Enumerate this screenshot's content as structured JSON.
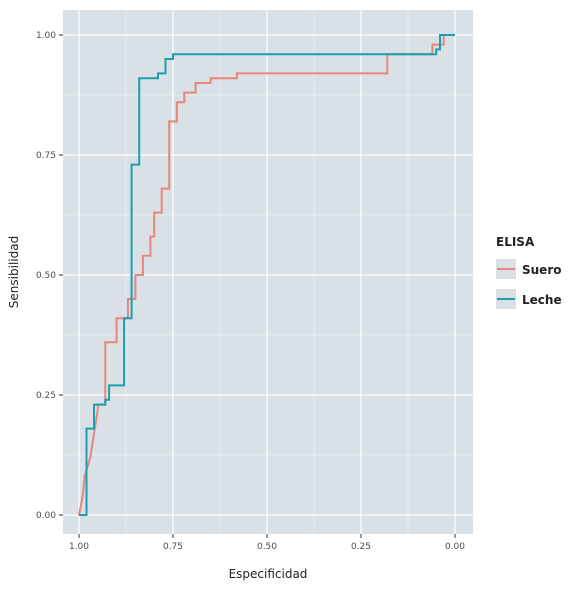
{
  "chart_data": {
    "type": "line",
    "title": "",
    "xlabel": "Especificidad",
    "ylabel": "Sensibilidad",
    "xlim": [
      1.0,
      0.0
    ],
    "ylim": [
      0.0,
      1.0
    ],
    "x_reversed": true,
    "x_ticks": [
      {
        "value": 1.0,
        "label": "1.00"
      },
      {
        "value": 0.75,
        "label": "0.75"
      },
      {
        "value": 0.5,
        "label": "0.50"
      },
      {
        "value": 0.25,
        "label": "0.25"
      },
      {
        "value": 0.0,
        "label": "0.00"
      }
    ],
    "y_ticks": [
      {
        "value": 0.0,
        "label": "0.00"
      },
      {
        "value": 0.25,
        "label": "0.25"
      },
      {
        "value": 0.5,
        "label": "0.50"
      },
      {
        "value": 0.75,
        "label": "0.75"
      },
      {
        "value": 1.0,
        "label": "1.00"
      }
    ],
    "grid": true,
    "panel_background": "#d9e1e6",
    "grid_color": "#ffffff",
    "legend": {
      "title": "ELISA",
      "position": "right",
      "background": "#d9e1e6"
    },
    "series": [
      {
        "name": "Suero",
        "color": "#e8867c",
        "x": [
          1.0,
          0.99,
          0.985,
          0.97,
          0.96,
          0.95,
          0.95,
          0.93,
          0.93,
          0.9,
          0.9,
          0.87,
          0.87,
          0.85,
          0.85,
          0.83,
          0.83,
          0.81,
          0.81,
          0.8,
          0.8,
          0.78,
          0.78,
          0.76,
          0.76,
          0.74,
          0.74,
          0.72,
          0.72,
          0.69,
          0.69,
          0.65,
          0.65,
          0.58,
          0.58,
          0.18,
          0.18,
          0.06,
          0.06,
          0.03,
          0.03,
          0.0
        ],
        "y": [
          0.0,
          0.04,
          0.08,
          0.12,
          0.17,
          0.22,
          0.23,
          0.23,
          0.36,
          0.36,
          0.41,
          0.41,
          0.45,
          0.45,
          0.5,
          0.5,
          0.54,
          0.54,
          0.58,
          0.58,
          0.63,
          0.63,
          0.68,
          0.68,
          0.82,
          0.82,
          0.86,
          0.86,
          0.88,
          0.88,
          0.9,
          0.9,
          0.91,
          0.91,
          0.92,
          0.92,
          0.96,
          0.96,
          0.98,
          0.98,
          1.0,
          1.0
        ]
      },
      {
        "name": "Leche",
        "color": "#1b9eb0",
        "x": [
          1.0,
          0.98,
          0.98,
          0.96,
          0.96,
          0.93,
          0.93,
          0.92,
          0.92,
          0.88,
          0.88,
          0.86,
          0.86,
          0.84,
          0.84,
          0.79,
          0.79,
          0.77,
          0.77,
          0.75,
          0.75,
          0.73,
          0.73,
          0.59,
          0.59,
          0.05,
          0.05,
          0.04,
          0.04,
          0.0
        ],
        "y": [
          0.0,
          0.0,
          0.18,
          0.18,
          0.23,
          0.23,
          0.24,
          0.24,
          0.27,
          0.27,
          0.41,
          0.41,
          0.73,
          0.73,
          0.91,
          0.91,
          0.92,
          0.92,
          0.95,
          0.95,
          0.96,
          0.96,
          0.96,
          0.96,
          0.96,
          0.96,
          0.97,
          0.97,
          1.0,
          1.0
        ]
      }
    ]
  }
}
